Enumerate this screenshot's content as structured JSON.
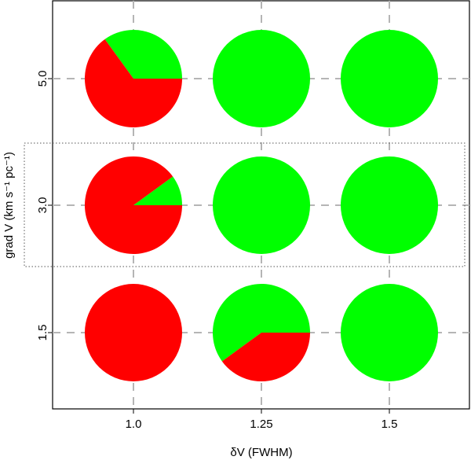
{
  "chart_data": {
    "type": "pie",
    "title": "",
    "xlabel": "δV (FWHM)",
    "ylabel": "grad V (km s⁻¹ pc⁻¹)",
    "x_ticks": [
      "1.0",
      "1.25",
      "1.5"
    ],
    "y_ticks": [
      "1.5",
      "3.0",
      "5.0"
    ],
    "grid": true,
    "colors": {
      "positive": "#00ff00",
      "negative": "#ff0000"
    },
    "highlighted_row": "3.0",
    "pies": [
      {
        "x": "1.0",
        "y": "5.0",
        "green_fraction": 0.35
      },
      {
        "x": "1.25",
        "y": "5.0",
        "green_fraction": 1.0
      },
      {
        "x": "1.5",
        "y": "5.0",
        "green_fraction": 1.0
      },
      {
        "x": "1.0",
        "y": "3.0",
        "green_fraction": 0.1
      },
      {
        "x": "1.25",
        "y": "3.0",
        "green_fraction": 1.0
      },
      {
        "x": "1.5",
        "y": "3.0",
        "green_fraction": 1.0
      },
      {
        "x": "1.0",
        "y": "1.5",
        "green_fraction": 0.0
      },
      {
        "x": "1.25",
        "y": "1.5",
        "green_fraction": 0.6
      },
      {
        "x": "1.5",
        "y": "1.5",
        "green_fraction": 1.0
      }
    ]
  }
}
